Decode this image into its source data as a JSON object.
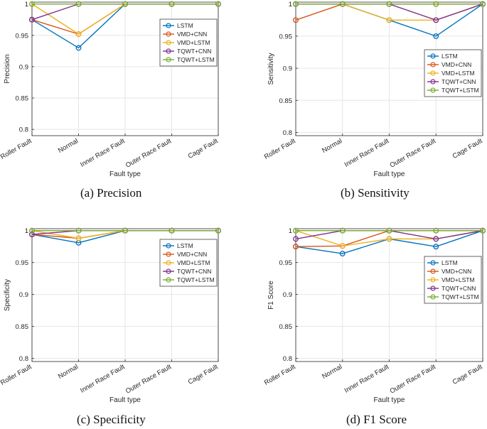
{
  "colors": {
    "LSTM": "#0072BD",
    "VMD+CNN": "#D95319",
    "VMD+LSTM": "#EDB120",
    "TQWT+CNN": "#7E2F8E",
    "TQWT+LSTM": "#77AC30",
    "grid": "#e6e6e6",
    "axis": "#262626"
  },
  "chart_data": [
    {
      "type": "line",
      "caption": "(a) Precision",
      "xlabel": "Fault type",
      "ylabel": "Precision",
      "ylim": [
        0.79,
        1.003
      ],
      "yticks": [
        0.8,
        0.85,
        0.9,
        0.95,
        1
      ],
      "ytick_labels": [
        "0.8",
        "0.85",
        "0.9",
        "0.95",
        "1"
      ],
      "grid": true,
      "legend": "top-right",
      "categories": [
        "Roller Fault",
        "Normal",
        "Inner Race Fault",
        "Outer Race Fault",
        "Cage Fault"
      ],
      "series": [
        {
          "name": "LSTM",
          "values": [
            0.975,
            0.93,
            1,
            1,
            1
          ]
        },
        {
          "name": "VMD+CNN",
          "values": [
            0.975,
            0.952,
            1,
            1,
            1
          ]
        },
        {
          "name": "VMD+LSTM",
          "values": [
            1,
            0.952,
            1,
            1,
            1
          ]
        },
        {
          "name": "TQWT+CNN",
          "values": [
            0.975,
            1,
            1,
            1,
            1
          ]
        },
        {
          "name": "TQWT+LSTM",
          "values": [
            1,
            1,
            1,
            1,
            1
          ]
        }
      ]
    },
    {
      "type": "line",
      "caption": "(b) Sensitivity",
      "xlabel": "Fault type",
      "ylabel": "Sensitivity",
      "ylim": [
        0.795,
        1.003
      ],
      "yticks": [
        0.8,
        0.85,
        0.9,
        0.95,
        1
      ],
      "ytick_labels": [
        "0.8",
        "0.85",
        "0.9",
        "0.95",
        "1"
      ],
      "grid": true,
      "legend": "bottom-right",
      "categories": [
        "Roller Fault",
        "Normal",
        "Inner Race Fault",
        "Outer Race Fault",
        "Cage Fault"
      ],
      "series": [
        {
          "name": "LSTM",
          "values": [
            1,
            1,
            0.975,
            0.95,
            1
          ]
        },
        {
          "name": "VMD+CNN",
          "values": [
            0.975,
            1,
            1,
            1,
            1
          ]
        },
        {
          "name": "VMD+LSTM",
          "values": [
            1,
            1,
            0.975,
            0.975,
            1
          ]
        },
        {
          "name": "TQWT+CNN",
          "values": [
            1,
            1,
            1,
            0.975,
            1
          ]
        },
        {
          "name": "TQWT+LSTM",
          "values": [
            1,
            1,
            1,
            1,
            1
          ]
        }
      ]
    },
    {
      "type": "line",
      "caption": "(c) Specificity",
      "xlabel": "Fault type",
      "ylabel": "Specificity",
      "ylim": [
        0.795,
        1.003
      ],
      "yticks": [
        0.8,
        0.85,
        0.9,
        0.95,
        1
      ],
      "ytick_labels": [
        "0.8",
        "0.85",
        "0.9",
        "0.95",
        "1"
      ],
      "grid": true,
      "legend": "top-right",
      "categories": [
        "Roller Fault",
        "Normal",
        "Inner Race Fault",
        "Outer Race Fault",
        "Cage Fault"
      ],
      "series": [
        {
          "name": "LSTM",
          "values": [
            0.994,
            0.981,
            1,
            1,
            1
          ]
        },
        {
          "name": "VMD+CNN",
          "values": [
            0.994,
            0.988,
            1,
            1,
            1
          ]
        },
        {
          "name": "VMD+LSTM",
          "values": [
            1,
            0.988,
            1,
            1,
            1
          ]
        },
        {
          "name": "TQWT+CNN",
          "values": [
            0.994,
            1,
            1,
            1,
            1
          ]
        },
        {
          "name": "TQWT+LSTM",
          "values": [
            1,
            1,
            1,
            1,
            1
          ]
        }
      ]
    },
    {
      "type": "line",
      "caption": "(d) F1 Score",
      "xlabel": "Fault type",
      "ylabel": "F1 Score",
      "ylim": [
        0.795,
        1.003
      ],
      "yticks": [
        0.8,
        0.85,
        0.9,
        0.95,
        1
      ],
      "ytick_labels": [
        "0.8",
        "0.85",
        "0.9",
        "0.95",
        "1"
      ],
      "grid": true,
      "legend": "top-right",
      "categories": [
        "Roller Fault",
        "Normal",
        "Inner Race Fault",
        "Outer Race Fault",
        "Cage Fault"
      ],
      "series": [
        {
          "name": "LSTM",
          "values": [
            0.975,
            0.964,
            0.987,
            0.975,
            1
          ]
        },
        {
          "name": "VMD+CNN",
          "values": [
            0.975,
            0.976,
            1,
            1,
            1
          ]
        },
        {
          "name": "VMD+LSTM",
          "values": [
            1,
            0.976,
            0.987,
            0.987,
            1
          ]
        },
        {
          "name": "TQWT+CNN",
          "values": [
            0.987,
            1,
            1,
            0.987,
            1
          ]
        },
        {
          "name": "TQWT+LSTM",
          "values": [
            1,
            1,
            1,
            1,
            1
          ]
        }
      ]
    }
  ]
}
